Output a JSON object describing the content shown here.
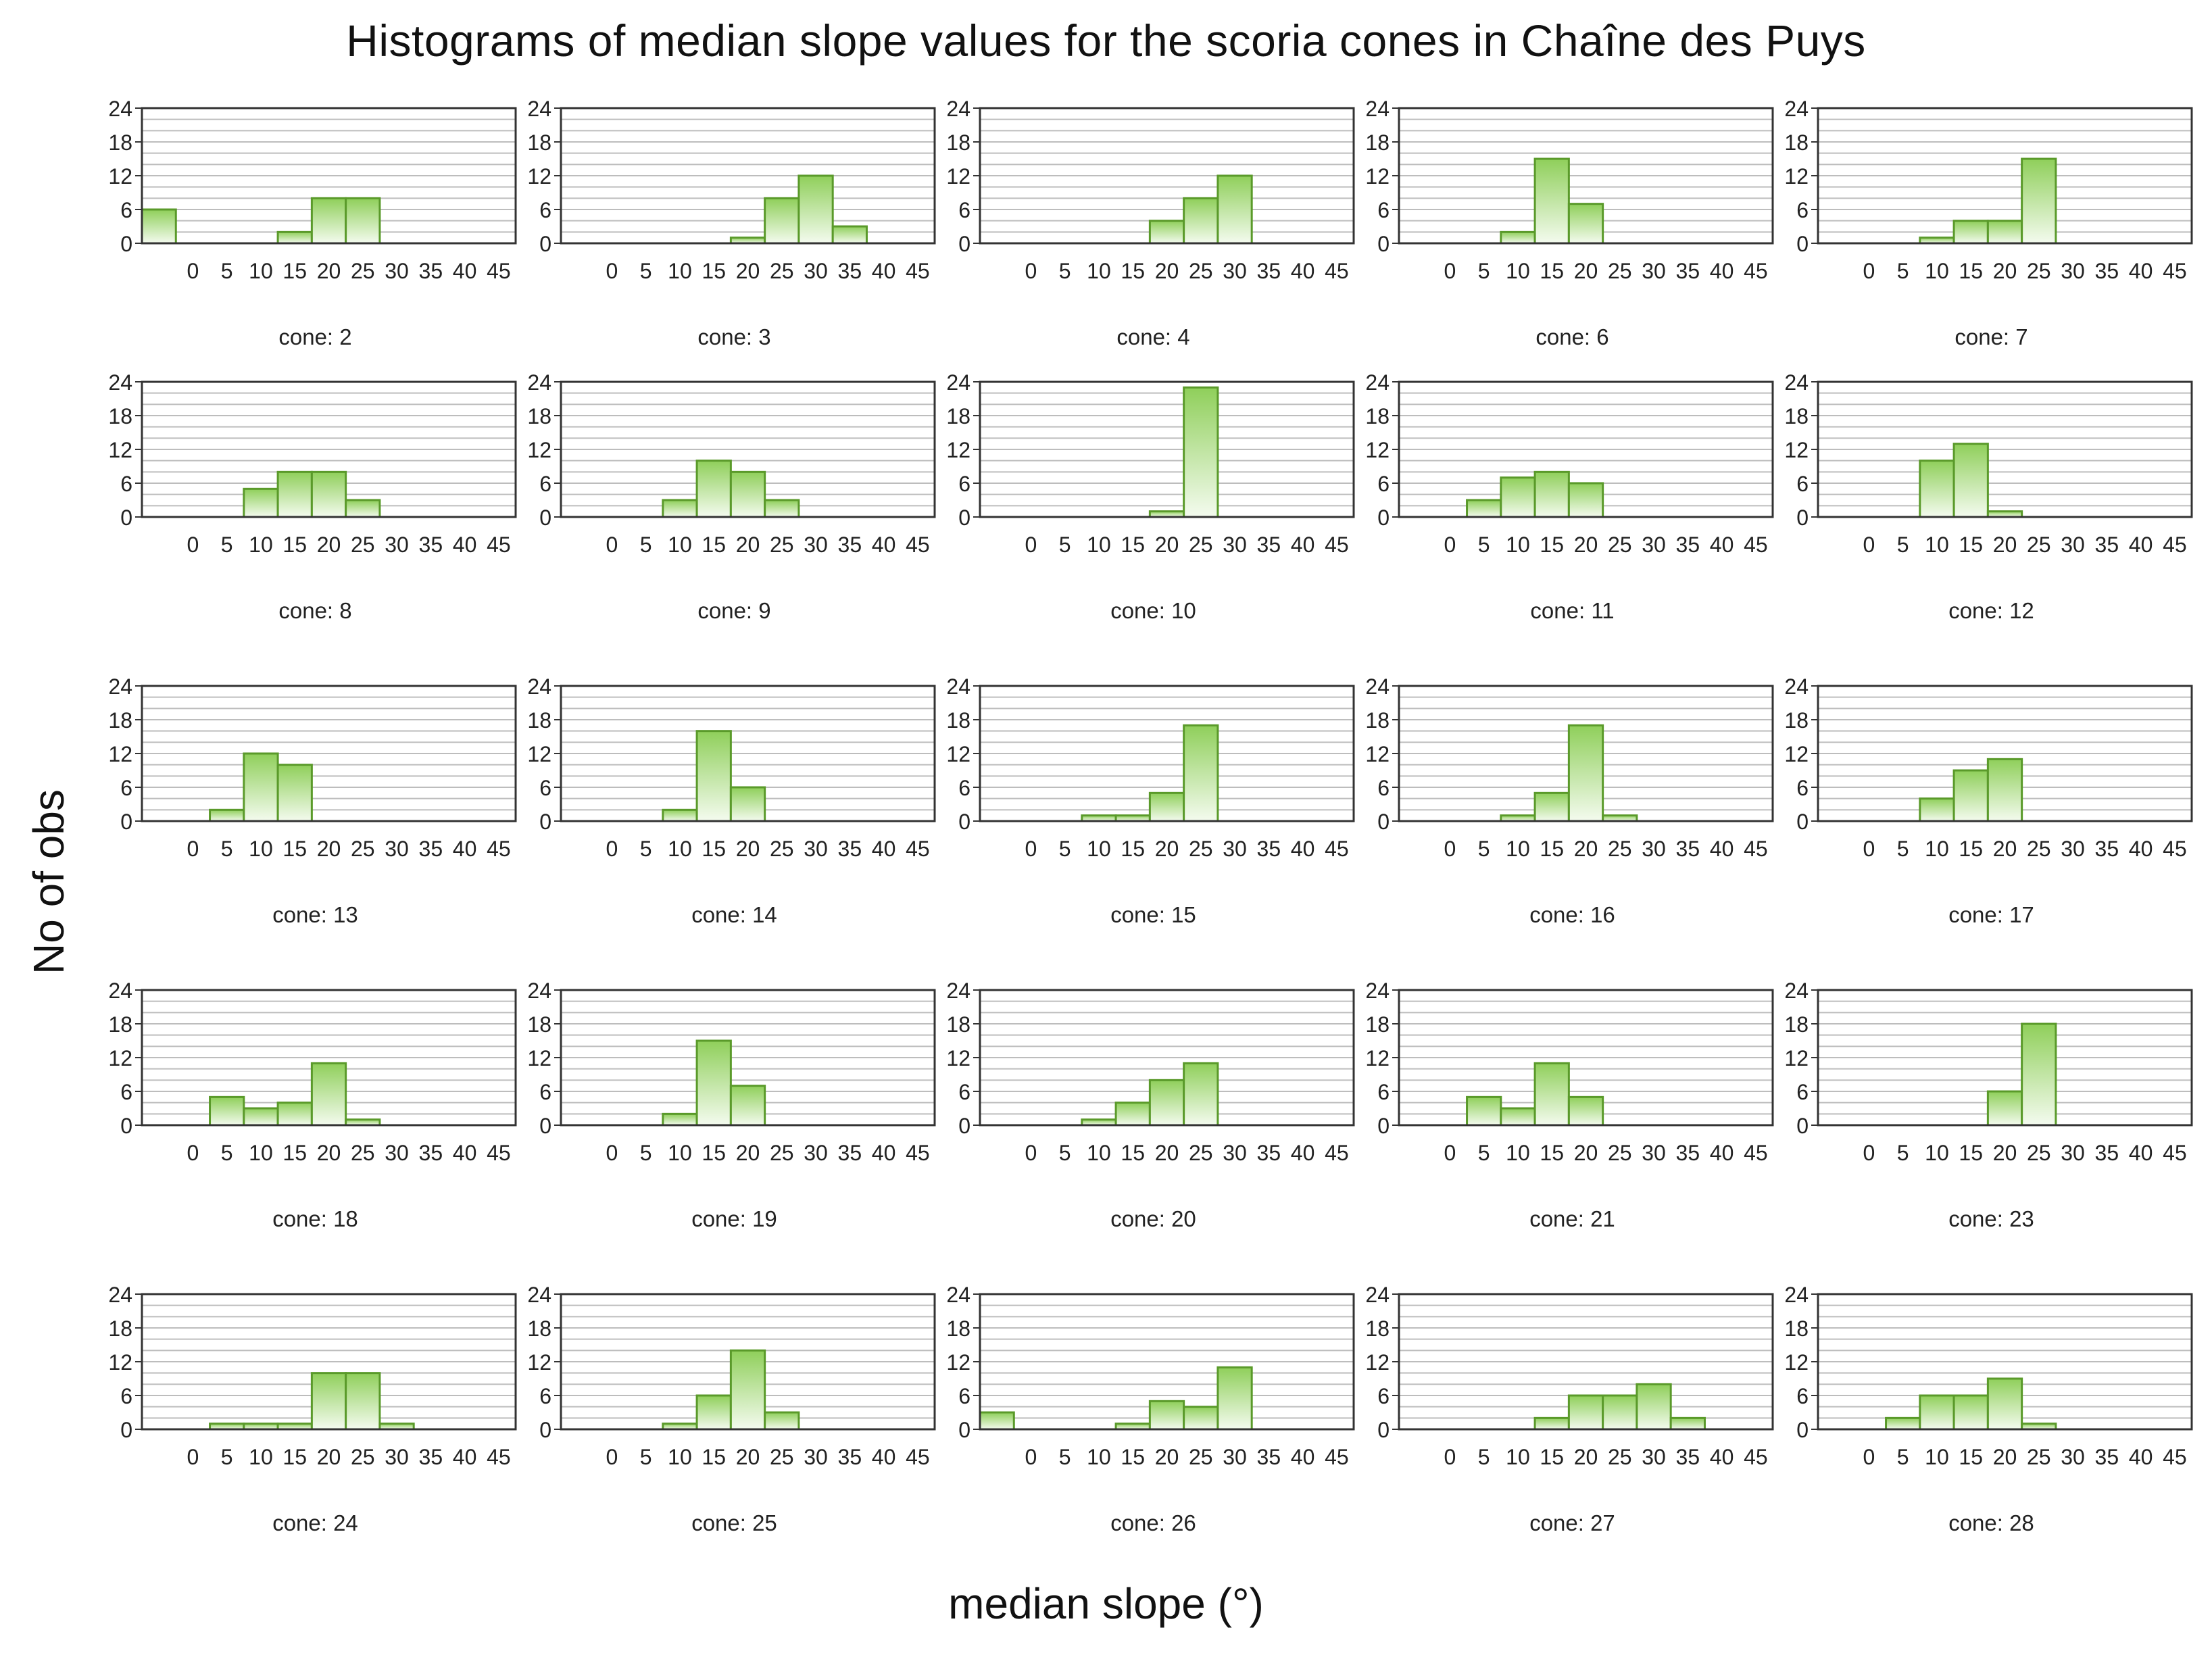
{
  "title": "Histograms of median slope values for the scoria cones in Chaîne des Puys",
  "ylabel": "No of obs",
  "xlabel": "median slope (°)",
  "colors": {
    "bar_fill_top": "#8fcf5a",
    "bar_fill_bottom": "#f4fbef",
    "bar_stroke": "#5a9a2a",
    "grid": "#bdbdbd",
    "frame": "#333333"
  },
  "chart_data": [
    {
      "type": "bar",
      "panel_label": "cone: 2",
      "categories": [
        "-5",
        "0",
        "5",
        "10",
        "15",
        "20",
        "25",
        "30",
        "35",
        "40",
        "45"
      ],
      "values": [
        6,
        0,
        0,
        0,
        2,
        8,
        8,
        0,
        0,
        0,
        0
      ],
      "xticks": [
        "0",
        "5",
        "10",
        "15",
        "20",
        "25",
        "30",
        "35",
        "40",
        "45"
      ],
      "yticks": [
        "0",
        "6",
        "12",
        "18",
        "24"
      ],
      "ylim": [
        0,
        24
      ]
    },
    {
      "type": "bar",
      "panel_label": "cone: 3",
      "categories": [
        "-5",
        "0",
        "5",
        "10",
        "15",
        "20",
        "25",
        "30",
        "35",
        "40",
        "45"
      ],
      "values": [
        0,
        0,
        0,
        0,
        0,
        1,
        8,
        12,
        3,
        0,
        0
      ],
      "xticks": [
        "0",
        "5",
        "10",
        "15",
        "20",
        "25",
        "30",
        "35",
        "40",
        "45"
      ],
      "yticks": [
        "0",
        "6",
        "12",
        "18",
        "24"
      ],
      "ylim": [
        0,
        24
      ]
    },
    {
      "type": "bar",
      "panel_label": "cone: 4",
      "categories": [
        "-5",
        "0",
        "5",
        "10",
        "15",
        "20",
        "25",
        "30",
        "35",
        "40",
        "45"
      ],
      "values": [
        0,
        0,
        0,
        0,
        0,
        4,
        8,
        12,
        0,
        0,
        0
      ],
      "xticks": [
        "0",
        "5",
        "10",
        "15",
        "20",
        "25",
        "30",
        "35",
        "40",
        "45"
      ],
      "yticks": [
        "0",
        "6",
        "12",
        "18",
        "24"
      ],
      "ylim": [
        0,
        24
      ]
    },
    {
      "type": "bar",
      "panel_label": "cone: 6",
      "categories": [
        "-5",
        "0",
        "5",
        "10",
        "15",
        "20",
        "25",
        "30",
        "35",
        "40",
        "45"
      ],
      "values": [
        0,
        0,
        0,
        2,
        15,
        7,
        0,
        0,
        0,
        0,
        0
      ],
      "xticks": [
        "0",
        "5",
        "10",
        "15",
        "20",
        "25",
        "30",
        "35",
        "40",
        "45"
      ],
      "yticks": [
        "0",
        "6",
        "12",
        "18",
        "24"
      ],
      "ylim": [
        0,
        24
      ]
    },
    {
      "type": "bar",
      "panel_label": "cone: 7",
      "categories": [
        "-5",
        "0",
        "5",
        "10",
        "15",
        "20",
        "25",
        "30",
        "35",
        "40",
        "45"
      ],
      "values": [
        0,
        0,
        0,
        1,
        4,
        4,
        15,
        0,
        0,
        0,
        0
      ],
      "xticks": [
        "0",
        "5",
        "10",
        "15",
        "20",
        "25",
        "30",
        "35",
        "40",
        "45"
      ],
      "yticks": [
        "0",
        "6",
        "12",
        "18",
        "24"
      ],
      "ylim": [
        0,
        24
      ]
    },
    {
      "type": "bar",
      "panel_label": "cone: 8",
      "categories": [
        "-5",
        "0",
        "5",
        "10",
        "15",
        "20",
        "25",
        "30",
        "35",
        "40",
        "45"
      ],
      "values": [
        0,
        0,
        0,
        5,
        8,
        8,
        3,
        0,
        0,
        0,
        0
      ],
      "xticks": [
        "0",
        "5",
        "10",
        "15",
        "20",
        "25",
        "30",
        "35",
        "40",
        "45"
      ],
      "yticks": [
        "0",
        "6",
        "12",
        "18",
        "24"
      ],
      "ylim": [
        0,
        24
      ]
    },
    {
      "type": "bar",
      "panel_label": "cone: 9",
      "categories": [
        "-5",
        "0",
        "5",
        "10",
        "15",
        "20",
        "25",
        "30",
        "35",
        "40",
        "45"
      ],
      "values": [
        0,
        0,
        0,
        3,
        10,
        8,
        3,
        0,
        0,
        0,
        0
      ],
      "xticks": [
        "0",
        "5",
        "10",
        "15",
        "20",
        "25",
        "30",
        "35",
        "40",
        "45"
      ],
      "yticks": [
        "0",
        "6",
        "12",
        "18",
        "24"
      ],
      "ylim": [
        0,
        24
      ]
    },
    {
      "type": "bar",
      "panel_label": "cone: 10",
      "categories": [
        "-5",
        "0",
        "5",
        "10",
        "15",
        "20",
        "25",
        "30",
        "35",
        "40",
        "45"
      ],
      "values": [
        0,
        0,
        0,
        0,
        0,
        1,
        23,
        0,
        0,
        0,
        0
      ],
      "xticks": [
        "0",
        "5",
        "10",
        "15",
        "20",
        "25",
        "30",
        "35",
        "40",
        "45"
      ],
      "yticks": [
        "0",
        "6",
        "12",
        "18",
        "24"
      ],
      "ylim": [
        0,
        24
      ]
    },
    {
      "type": "bar",
      "panel_label": "cone: 11",
      "categories": [
        "-5",
        "0",
        "5",
        "10",
        "15",
        "20",
        "25",
        "30",
        "35",
        "40",
        "45"
      ],
      "values": [
        0,
        0,
        3,
        7,
        8,
        6,
        0,
        0,
        0,
        0,
        0
      ],
      "xticks": [
        "0",
        "5",
        "10",
        "15",
        "20",
        "25",
        "30",
        "35",
        "40",
        "45"
      ],
      "yticks": [
        "0",
        "6",
        "12",
        "18",
        "24"
      ],
      "ylim": [
        0,
        24
      ]
    },
    {
      "type": "bar",
      "panel_label": "cone: 12",
      "categories": [
        "-5",
        "0",
        "5",
        "10",
        "15",
        "20",
        "25",
        "30",
        "35",
        "40",
        "45"
      ],
      "values": [
        0,
        0,
        0,
        10,
        13,
        1,
        0,
        0,
        0,
        0,
        0
      ],
      "xticks": [
        "0",
        "5",
        "10",
        "15",
        "20",
        "25",
        "30",
        "35",
        "40",
        "45"
      ],
      "yticks": [
        "0",
        "6",
        "12",
        "18",
        "24"
      ],
      "ylim": [
        0,
        24
      ]
    },
    {
      "type": "bar",
      "panel_label": "cone: 13",
      "categories": [
        "-5",
        "0",
        "5",
        "10",
        "15",
        "20",
        "25",
        "30",
        "35",
        "40",
        "45"
      ],
      "values": [
        0,
        0,
        2,
        12,
        10,
        0,
        0,
        0,
        0,
        0,
        0
      ],
      "xticks": [
        "0",
        "5",
        "10",
        "15",
        "20",
        "25",
        "30",
        "35",
        "40",
        "45"
      ],
      "yticks": [
        "0",
        "6",
        "12",
        "18",
        "24"
      ],
      "ylim": [
        0,
        24
      ]
    },
    {
      "type": "bar",
      "panel_label": "cone: 14",
      "categories": [
        "-5",
        "0",
        "5",
        "10",
        "15",
        "20",
        "25",
        "30",
        "35",
        "40",
        "45"
      ],
      "values": [
        0,
        0,
        0,
        2,
        16,
        6,
        0,
        0,
        0,
        0,
        0
      ],
      "xticks": [
        "0",
        "5",
        "10",
        "15",
        "20",
        "25",
        "30",
        "35",
        "40",
        "45"
      ],
      "yticks": [
        "0",
        "6",
        "12",
        "18",
        "24"
      ],
      "ylim": [
        0,
        24
      ]
    },
    {
      "type": "bar",
      "panel_label": "cone: 15",
      "categories": [
        "-5",
        "0",
        "5",
        "10",
        "15",
        "20",
        "25",
        "30",
        "35",
        "40",
        "45"
      ],
      "values": [
        0,
        0,
        0,
        1,
        1,
        5,
        17,
        0,
        0,
        0,
        0
      ],
      "xticks": [
        "0",
        "5",
        "10",
        "15",
        "20",
        "25",
        "30",
        "35",
        "40",
        "45"
      ],
      "yticks": [
        "0",
        "6",
        "12",
        "18",
        "24"
      ],
      "ylim": [
        0,
        24
      ]
    },
    {
      "type": "bar",
      "panel_label": "cone: 16",
      "categories": [
        "-5",
        "0",
        "5",
        "10",
        "15",
        "20",
        "25",
        "30",
        "35",
        "40",
        "45"
      ],
      "values": [
        0,
        0,
        0,
        1,
        5,
        17,
        1,
        0,
        0,
        0,
        0
      ],
      "xticks": [
        "0",
        "5",
        "10",
        "15",
        "20",
        "25",
        "30",
        "35",
        "40",
        "45"
      ],
      "yticks": [
        "0",
        "6",
        "12",
        "18",
        "24"
      ],
      "ylim": [
        0,
        24
      ]
    },
    {
      "type": "bar",
      "panel_label": "cone: 17",
      "categories": [
        "-5",
        "0",
        "5",
        "10",
        "15",
        "20",
        "25",
        "30",
        "35",
        "40",
        "45"
      ],
      "values": [
        0,
        0,
        0,
        4,
        9,
        11,
        0,
        0,
        0,
        0,
        0
      ],
      "xticks": [
        "0",
        "5",
        "10",
        "15",
        "20",
        "25",
        "30",
        "35",
        "40",
        "45"
      ],
      "yticks": [
        "0",
        "6",
        "12",
        "18",
        "24"
      ],
      "ylim": [
        0,
        24
      ]
    },
    {
      "type": "bar",
      "panel_label": "cone: 18",
      "categories": [
        "-5",
        "0",
        "5",
        "10",
        "15",
        "20",
        "25",
        "30",
        "35",
        "40",
        "45"
      ],
      "values": [
        0,
        0,
        5,
        3,
        4,
        11,
        1,
        0,
        0,
        0,
        0
      ],
      "xticks": [
        "0",
        "5",
        "10",
        "15",
        "20",
        "25",
        "30",
        "35",
        "40",
        "45"
      ],
      "yticks": [
        "0",
        "6",
        "12",
        "18",
        "24"
      ],
      "ylim": [
        0,
        24
      ]
    },
    {
      "type": "bar",
      "panel_label": "cone: 19",
      "categories": [
        "-5",
        "0",
        "5",
        "10",
        "15",
        "20",
        "25",
        "30",
        "35",
        "40",
        "45"
      ],
      "values": [
        0,
        0,
        0,
        2,
        15,
        7,
        0,
        0,
        0,
        0,
        0
      ],
      "xticks": [
        "0",
        "5",
        "10",
        "15",
        "20",
        "25",
        "30",
        "35",
        "40",
        "45"
      ],
      "yticks": [
        "0",
        "6",
        "12",
        "18",
        "24"
      ],
      "ylim": [
        0,
        24
      ]
    },
    {
      "type": "bar",
      "panel_label": "cone: 20",
      "categories": [
        "-5",
        "0",
        "5",
        "10",
        "15",
        "20",
        "25",
        "30",
        "35",
        "40",
        "45"
      ],
      "values": [
        0,
        0,
        0,
        1,
        4,
        8,
        11,
        0,
        0,
        0,
        0
      ],
      "xticks": [
        "0",
        "5",
        "10",
        "15",
        "20",
        "25",
        "30",
        "35",
        "40",
        "45"
      ],
      "yticks": [
        "0",
        "6",
        "12",
        "18",
        "24"
      ],
      "ylim": [
        0,
        24
      ]
    },
    {
      "type": "bar",
      "panel_label": "cone: 21",
      "categories": [
        "-5",
        "0",
        "5",
        "10",
        "15",
        "20",
        "25",
        "30",
        "35",
        "40",
        "45"
      ],
      "values": [
        0,
        0,
        5,
        3,
        11,
        5,
        0,
        0,
        0,
        0,
        0
      ],
      "xticks": [
        "0",
        "5",
        "10",
        "15",
        "20",
        "25",
        "30",
        "35",
        "40",
        "45"
      ],
      "yticks": [
        "0",
        "6",
        "12",
        "18",
        "24"
      ],
      "ylim": [
        0,
        24
      ]
    },
    {
      "type": "bar",
      "panel_label": "cone: 23",
      "categories": [
        "-5",
        "0",
        "5",
        "10",
        "15",
        "20",
        "25",
        "30",
        "35",
        "40",
        "45"
      ],
      "values": [
        0,
        0,
        0,
        0,
        0,
        6,
        18,
        0,
        0,
        0,
        0
      ],
      "xticks": [
        "0",
        "5",
        "10",
        "15",
        "20",
        "25",
        "30",
        "35",
        "40",
        "45"
      ],
      "yticks": [
        "0",
        "6",
        "12",
        "18",
        "24"
      ],
      "ylim": [
        0,
        24
      ]
    },
    {
      "type": "bar",
      "panel_label": "cone: 24",
      "categories": [
        "-5",
        "0",
        "5",
        "10",
        "15",
        "20",
        "25",
        "30",
        "35",
        "40",
        "45"
      ],
      "values": [
        0,
        0,
        1,
        1,
        1,
        10,
        10,
        1,
        0,
        0,
        0
      ],
      "xticks": [
        "0",
        "5",
        "10",
        "15",
        "20",
        "25",
        "30",
        "35",
        "40",
        "45"
      ],
      "yticks": [
        "0",
        "6",
        "12",
        "18",
        "24"
      ],
      "ylim": [
        0,
        24
      ]
    },
    {
      "type": "bar",
      "panel_label": "cone: 25",
      "categories": [
        "-5",
        "0",
        "5",
        "10",
        "15",
        "20",
        "25",
        "30",
        "35",
        "40",
        "45"
      ],
      "values": [
        0,
        0,
        0,
        1,
        6,
        14,
        3,
        0,
        0,
        0,
        0
      ],
      "xticks": [
        "0",
        "5",
        "10",
        "15",
        "20",
        "25",
        "30",
        "35",
        "40",
        "45"
      ],
      "yticks": [
        "0",
        "6",
        "12",
        "18",
        "24"
      ],
      "ylim": [
        0,
        24
      ]
    },
    {
      "type": "bar",
      "panel_label": "cone: 26",
      "categories": [
        "-5",
        "0",
        "5",
        "10",
        "15",
        "20",
        "25",
        "30",
        "35",
        "40",
        "45"
      ],
      "values": [
        3,
        0,
        0,
        0,
        1,
        5,
        4,
        11,
        0,
        0,
        0
      ],
      "xticks": [
        "0",
        "5",
        "10",
        "15",
        "20",
        "25",
        "30",
        "35",
        "40",
        "45"
      ],
      "yticks": [
        "0",
        "6",
        "12",
        "18",
        "24"
      ],
      "ylim": [
        0,
        24
      ]
    },
    {
      "type": "bar",
      "panel_label": "cone: 27",
      "categories": [
        "-5",
        "0",
        "5",
        "10",
        "15",
        "20",
        "25",
        "30",
        "35",
        "40",
        "45"
      ],
      "values": [
        0,
        0,
        0,
        0,
        2,
        6,
        6,
        8,
        2,
        0,
        0
      ],
      "xticks": [
        "0",
        "5",
        "10",
        "15",
        "20",
        "25",
        "30",
        "35",
        "40",
        "45"
      ],
      "yticks": [
        "0",
        "6",
        "12",
        "18",
        "24"
      ],
      "ylim": [
        0,
        24
      ]
    },
    {
      "type": "bar",
      "panel_label": "cone: 28",
      "categories": [
        "-5",
        "0",
        "5",
        "10",
        "15",
        "20",
        "25",
        "30",
        "35",
        "40",
        "45"
      ],
      "values": [
        0,
        0,
        2,
        6,
        6,
        9,
        1,
        0,
        0,
        0,
        0
      ],
      "xticks": [
        "0",
        "5",
        "10",
        "15",
        "20",
        "25",
        "30",
        "35",
        "40",
        "45"
      ],
      "yticks": [
        "0",
        "6",
        "12",
        "18",
        "24"
      ],
      "ylim": [
        0,
        24
      ]
    }
  ]
}
